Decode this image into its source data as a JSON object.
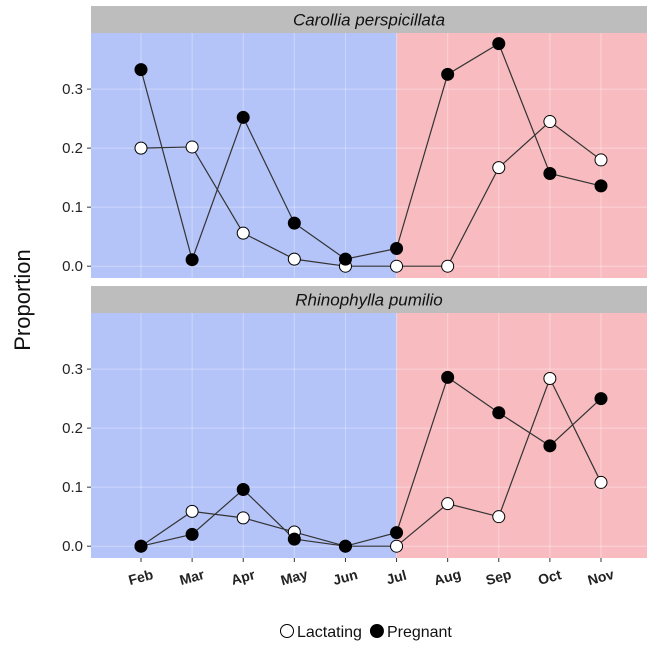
{
  "chart_data": {
    "type": "line",
    "ylabel": "Proportion",
    "categories": [
      "Feb",
      "Mar",
      "Apr",
      "May",
      "Jun",
      "Jul",
      "Aug",
      "Sep",
      "Oct",
      "Nov"
    ],
    "ylim": [
      -0.02,
      0.395
    ],
    "yticks": [
      0.0,
      0.1,
      0.2,
      0.3
    ],
    "ytick_labels": [
      "0.0",
      "0.1",
      "0.2",
      "0.3"
    ],
    "background_regions": [
      {
        "from": "Feb",
        "to": "Jul",
        "color": "#b4c3f8"
      },
      {
        "from": "Jul",
        "to": "Nov",
        "color": "#f8bcc0"
      }
    ],
    "legend": {
      "placement": "bottom",
      "entries": [
        {
          "name": "Lactating",
          "marker": "open-circle"
        },
        {
          "name": "Pregnant",
          "marker": "filled-circle"
        }
      ]
    },
    "panels": [
      {
        "title": "Carollia perspicillata",
        "series": [
          {
            "name": "Lactating",
            "values": [
              0.2,
              0.202,
              0.056,
              0.012,
              0.0,
              0.0,
              0.0,
              0.167,
              0.245,
              0.18
            ]
          },
          {
            "name": "Pregnant",
            "values": [
              0.333,
              0.011,
              0.252,
              0.073,
              0.012,
              0.03,
              0.325,
              0.377,
              0.157,
              0.136
            ]
          }
        ]
      },
      {
        "title": "Rhinophylla pumilio",
        "series": [
          {
            "name": "Lactating",
            "values": [
              0.0,
              0.059,
              0.048,
              0.024,
              0.0,
              0.0,
              0.072,
              0.05,
              0.284,
              0.108
            ]
          },
          {
            "name": "Pregnant",
            "values": [
              0.0,
              0.02,
              0.096,
              0.012,
              0.0,
              0.023,
              0.286,
              0.226,
              0.17,
              0.25
            ]
          }
        ]
      }
    ],
    "colors": {
      "strip": "#bdbdbd",
      "grid": "#ffffff",
      "line": "#333333",
      "pregnant_fill": "#000000",
      "lactating_fill": "#ffffff"
    }
  }
}
